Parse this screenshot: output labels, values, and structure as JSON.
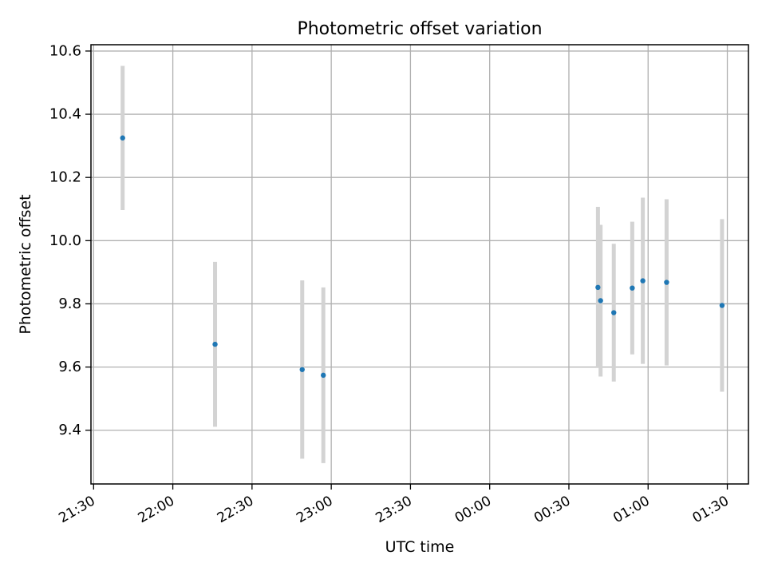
{
  "chart_data": {
    "type": "scatter",
    "title": "Photometric offset variation",
    "xlabel": "UTC time",
    "ylabel": "Photometric offset",
    "x_tick_labels": [
      "21:30",
      "22:00",
      "22:30",
      "23:00",
      "23:30",
      "00:00",
      "00:30",
      "01:00",
      "01:30"
    ],
    "y_tick_labels": [
      "9.4",
      "9.6",
      "9.8",
      "10.0",
      "10.2",
      "10.4",
      "10.6"
    ],
    "y_ticks": [
      9.4,
      9.6,
      9.8,
      10.0,
      10.2,
      10.4,
      10.6
    ],
    "xlim": [
      "21:29",
      "01:38"
    ],
    "ylim": [
      9.23,
      10.62
    ],
    "grid": true,
    "colors": {
      "point": "#1f77b4",
      "errorbar": "#d3d3d3",
      "grid": "#b0b0b0"
    },
    "points": [
      {
        "time": "21:41",
        "y": 10.325,
        "yerr": 0.228
      },
      {
        "time": "22:16",
        "y": 9.672,
        "yerr": 0.261
      },
      {
        "time": "22:49",
        "y": 9.592,
        "yerr": 0.282
      },
      {
        "time": "22:57",
        "y": 9.574,
        "yerr": 0.278
      },
      {
        "time": "00:41",
        "y": 9.852,
        "yerr": 0.255
      },
      {
        "time": "00:42",
        "y": 9.81,
        "yerr": 0.24
      },
      {
        "time": "00:47",
        "y": 9.772,
        "yerr": 0.218
      },
      {
        "time": "00:54",
        "y": 9.85,
        "yerr": 0.21
      },
      {
        "time": "00:58",
        "y": 9.873,
        "yerr": 0.263
      },
      {
        "time": "01:07",
        "y": 9.868,
        "yerr": 0.263
      },
      {
        "time": "01:28",
        "y": 9.795,
        "yerr": 0.273
      }
    ]
  }
}
